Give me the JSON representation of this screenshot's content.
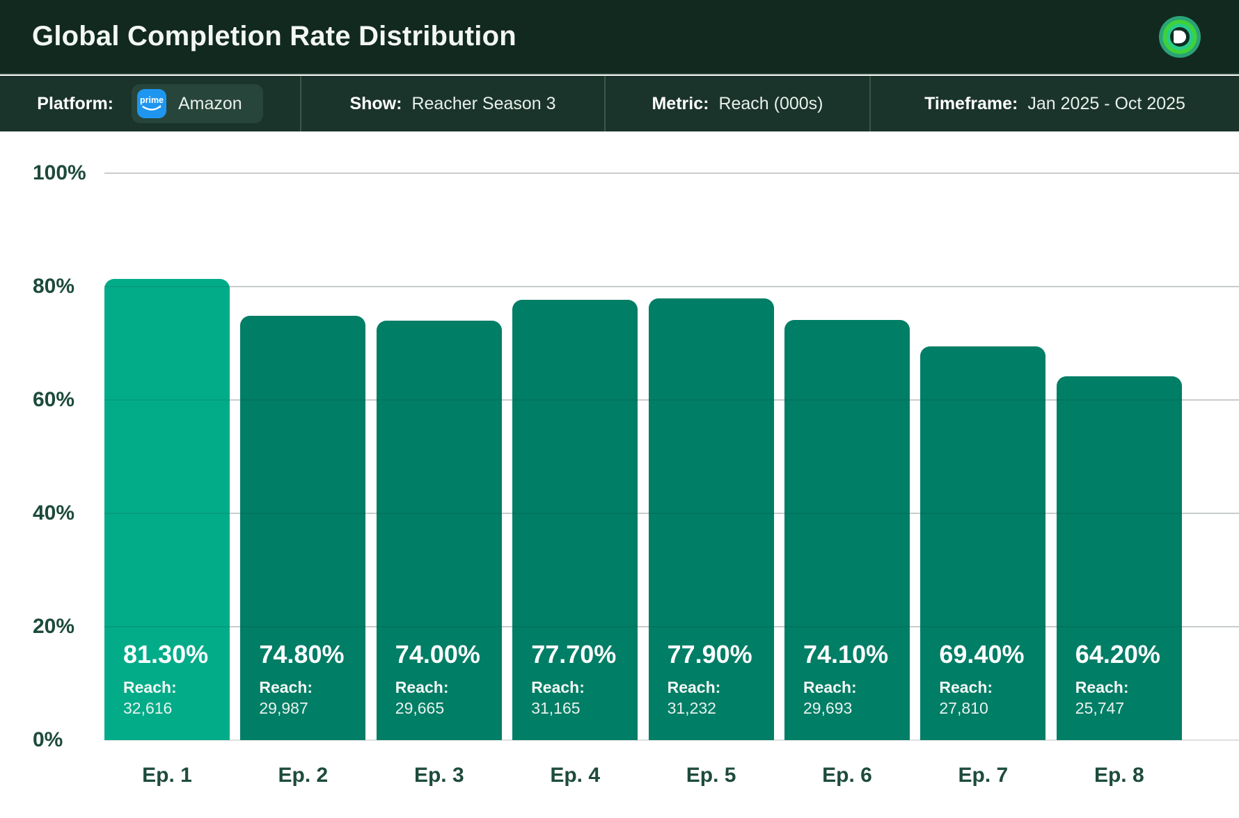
{
  "header": {
    "title": "Global Completion Rate Distribution"
  },
  "filters": {
    "platform": {
      "label": "Platform:",
      "value": "Amazon",
      "badge": "prime-logo"
    },
    "show": {
      "label": "Show:",
      "value": "Reacher Season 3"
    },
    "metric": {
      "label": "Metric:",
      "value": "Reach (000s)"
    },
    "timeframe": {
      "label": "Timeframe:",
      "value": "Jan 2025 - Oct 2025"
    }
  },
  "chart_data": {
    "type": "bar",
    "title": "Global Completion Rate Distribution",
    "categories": [
      "Ep. 1",
      "Ep. 2",
      "Ep. 3",
      "Ep. 4",
      "Ep. 5",
      "Ep. 6",
      "Ep. 7",
      "Ep. 8"
    ],
    "values": [
      81.3,
      74.8,
      74.0,
      77.7,
      77.9,
      74.1,
      69.4,
      64.2
    ],
    "value_labels": [
      "81.30%",
      "74.80%",
      "74.00%",
      "77.70%",
      "77.90%",
      "74.10%",
      "69.40%",
      "64.20%"
    ],
    "reach_label": "Reach:",
    "reach_values": [
      "32,616",
      "29,987",
      "29,665",
      "31,165",
      "31,232",
      "29,693",
      "27,810",
      "25,747"
    ],
    "ylim": [
      0,
      100
    ],
    "ticks": [
      {
        "value": 0,
        "label": "0%"
      },
      {
        "value": 20,
        "label": "20%"
      },
      {
        "value": 40,
        "label": "40%"
      },
      {
        "value": 60,
        "label": "60%"
      },
      {
        "value": 80,
        "label": "80%"
      },
      {
        "value": 100,
        "label": "100%"
      }
    ],
    "grid": true,
    "legend": "none",
    "highlight_index": 0,
    "colors": {
      "bar": "#017E66",
      "bar_highlight": "#03AC89",
      "grid": "#DDE0DF",
      "axis_text": "#1D4A3C",
      "header_bg": "#12291F",
      "subheader_bg": "#1B342B",
      "prime_blue": "#1E96F0"
    }
  }
}
